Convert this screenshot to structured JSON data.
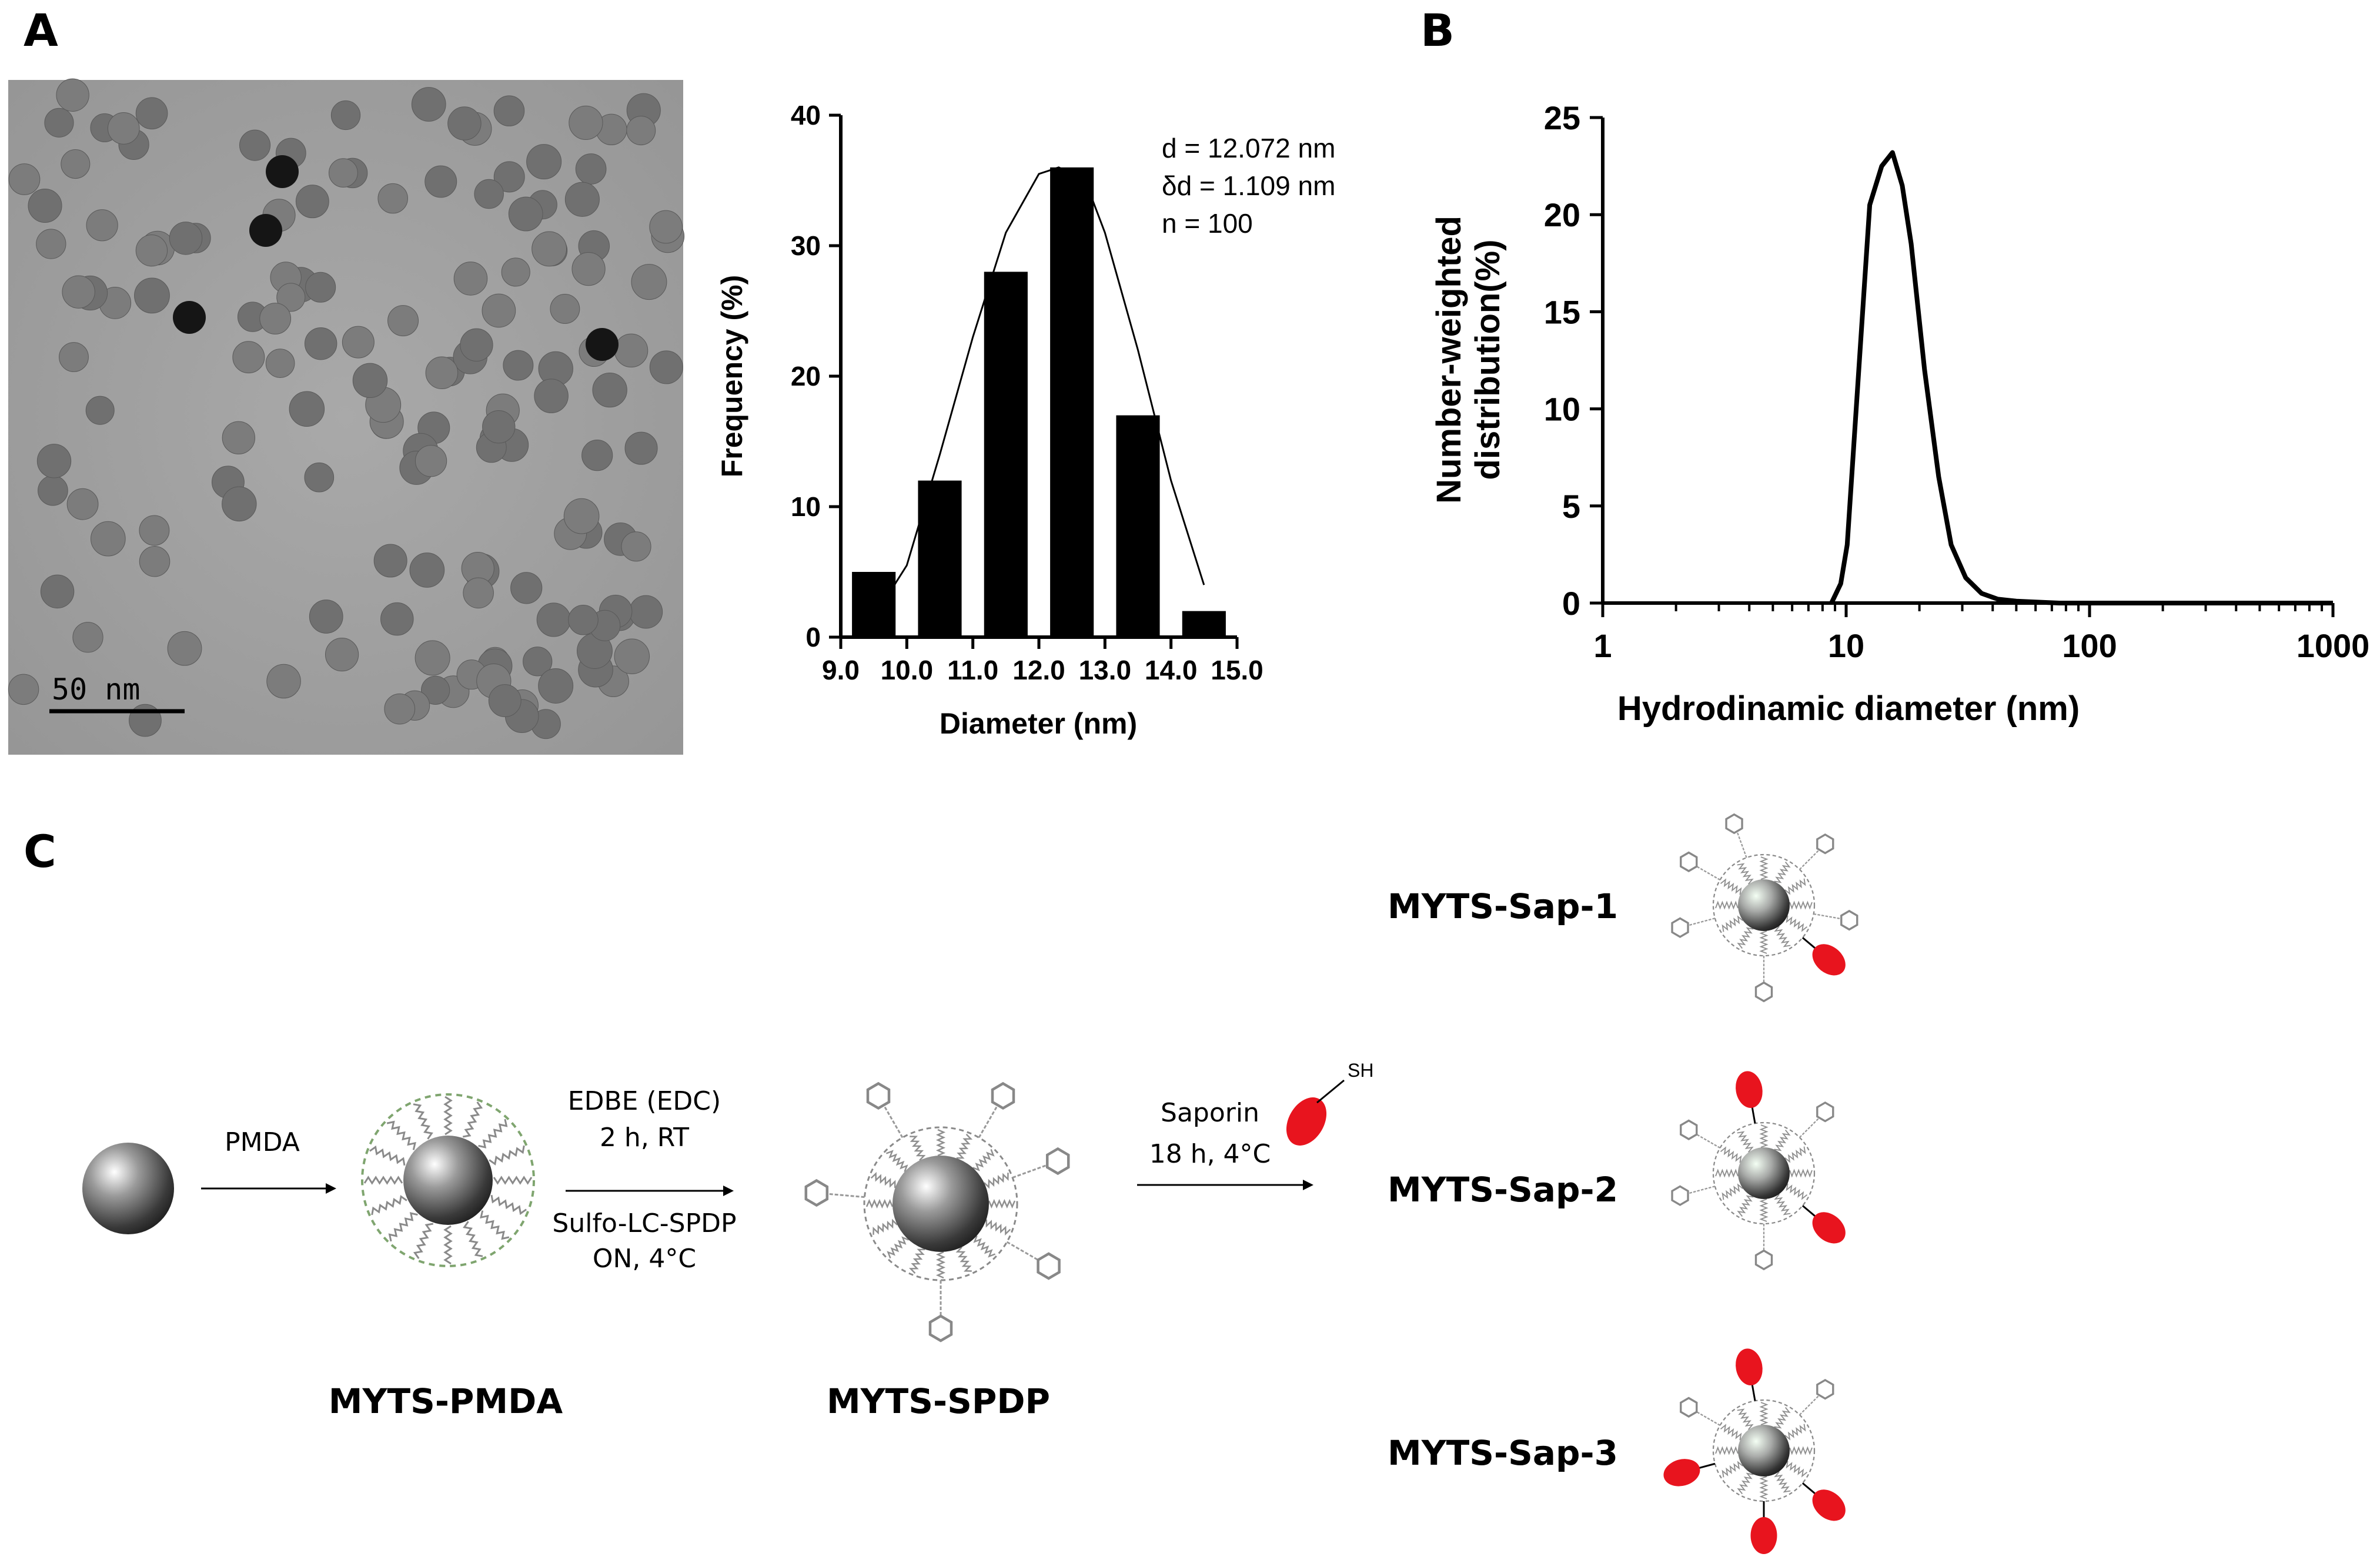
{
  "panels": {
    "a": "A",
    "b": "B",
    "c": "C"
  },
  "tem": {
    "scale_bar_label": "50 nm"
  },
  "chart_data": [
    {
      "type": "bar",
      "categories": [
        "9.5",
        "10.5",
        "11.5",
        "12.5",
        "13.5",
        "14.5"
      ],
      "values": [
        5,
        12,
        28,
        36,
        17,
        2
      ],
      "title": "",
      "xlabel": "Diameter (nm)",
      "ylabel": "Frequency (%)",
      "xlim": [
        9.0,
        15.0
      ],
      "ylim": [
        0,
        40
      ],
      "xticks": [
        "9.0",
        "10.0",
        "11.0",
        "12.0",
        "13.0",
        "14.0",
        "15.0"
      ],
      "yticks": [
        "0",
        "10",
        "20",
        "30",
        "40"
      ],
      "fit_curve": [
        [
          9.5,
          1.5
        ],
        [
          10.0,
          5.5
        ],
        [
          10.5,
          14
        ],
        [
          11.0,
          23
        ],
        [
          11.5,
          31
        ],
        [
          12.0,
          35.5
        ],
        [
          12.3,
          36
        ],
        [
          12.7,
          35
        ],
        [
          13.0,
          31
        ],
        [
          13.5,
          22
        ],
        [
          14.0,
          12
        ],
        [
          14.5,
          4
        ]
      ],
      "annotations": [
        "d = 12.072 nm",
        "δd = 1.109 nm",
        "n = 100"
      ],
      "grid": false
    },
    {
      "type": "line",
      "title": "",
      "xlabel": "Hydrodinamic diameter (nm)",
      "ylabel_line1": "Number-weighted",
      "ylabel_line2": "distribution(%)",
      "xscale": "log",
      "xlim": [
        1,
        1000
      ],
      "ylim": [
        0,
        25
      ],
      "xticks": [
        "1",
        "10",
        "100",
        "1000"
      ],
      "yticks": [
        "0",
        "5",
        "10",
        "15",
        "20",
        "25"
      ],
      "x": [
        8.7,
        9.5,
        10.1,
        11.0,
        12.5,
        14.0,
        15.5,
        17.0,
        18.5,
        21.0,
        24.0,
        27.0,
        31.0,
        36.0,
        42.0,
        50.0,
        60.0,
        75.0,
        100.0,
        1000.0
      ],
      "y": [
        0.0,
        1.0,
        3.0,
        10.0,
        20.5,
        22.5,
        23.2,
        21.5,
        18.5,
        12.0,
        6.5,
        3.0,
        1.3,
        0.5,
        0.2,
        0.1,
        0.05,
        0.0,
        0.0,
        0.0
      ],
      "grid": false
    }
  ],
  "scheme": {
    "step1_reagent": "PMDA",
    "step2_line1": "EDBE (EDC)",
    "step2_line2": "2 h, RT",
    "step2_line3": "Sulfo-LC-SPDP",
    "step2_line4": "ON, 4°C",
    "step3_line1": "Saporin",
    "step3_line2": "18 h, 4°C",
    "sh_label": "SH",
    "names": {
      "pmda": "MYTS-PMDA",
      "spdp": "MYTS-SPDP",
      "sap1": "MYTS-Sap-1",
      "sap2": "MYTS-Sap-2",
      "sap3": "MYTS-Sap-3"
    },
    "colors": {
      "saporin": "#e8141e",
      "core": "#5a5a5a"
    }
  }
}
